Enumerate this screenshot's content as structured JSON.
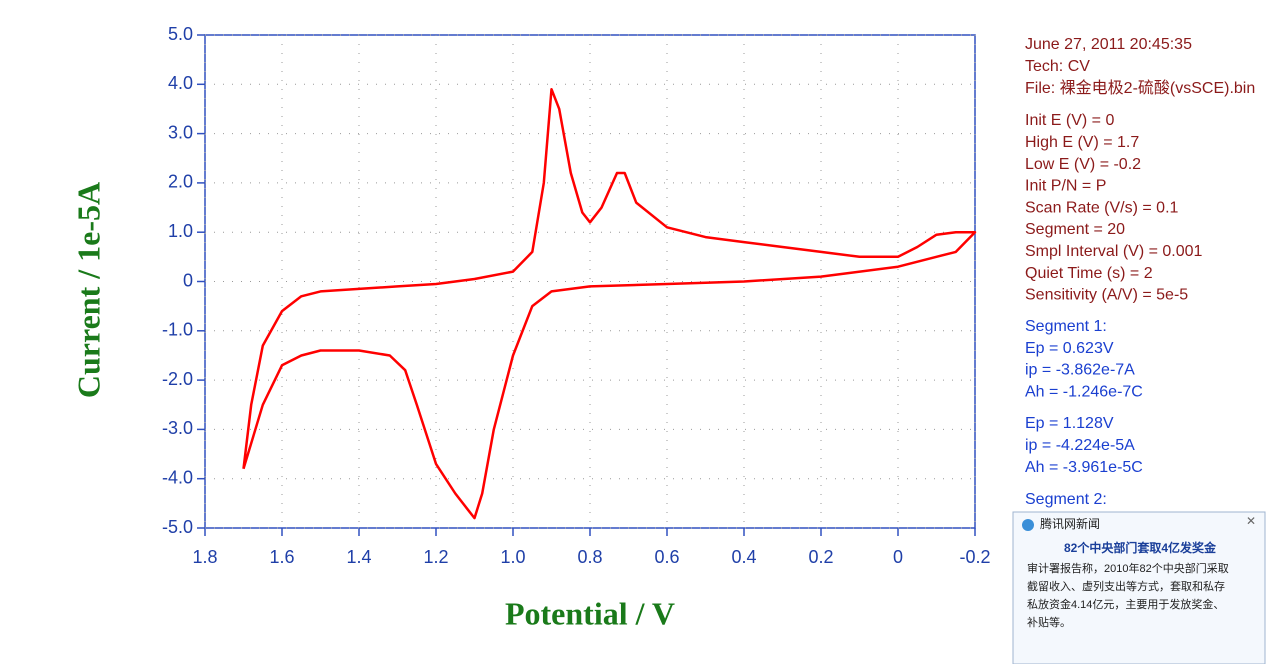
{
  "chart_data": {
    "type": "line",
    "x_label": "Potential / V",
    "y_label": "Current / 1e-5A",
    "color": "#ff0000",
    "x": [
      1.7,
      1.68,
      1.65,
      1.6,
      1.55,
      1.5,
      1.4,
      1.3,
      1.2,
      1.1,
      1.0,
      0.95,
      0.92,
      0.9,
      0.88,
      0.85,
      0.82,
      0.8,
      0.77,
      0.73,
      0.71,
      0.68,
      0.6,
      0.5,
      0.4,
      0.3,
      0.2,
      0.1,
      0,
      -0.05,
      -0.1,
      -0.15,
      -0.2,
      -0.15,
      -0.1,
      0,
      0.2,
      0.4,
      0.6,
      0.8,
      0.9,
      0.95,
      1.0,
      1.05,
      1.08,
      1.1,
      1.12,
      1.15,
      1.2,
      1.25,
      1.28,
      1.32,
      1.4,
      1.5,
      1.55,
      1.6,
      1.65,
      1.7
    ],
    "values": [
      -3.8,
      -2.5,
      -1.3,
      -0.6,
      -0.3,
      -0.2,
      -0.15,
      -0.1,
      -0.05,
      0.05,
      0.2,
      0.6,
      2.0,
      3.9,
      3.5,
      2.2,
      1.4,
      1.2,
      1.5,
      2.2,
      2.2,
      1.6,
      1.1,
      0.9,
      0.8,
      0.7,
      0.6,
      0.5,
      0.5,
      0.7,
      0.95,
      1.0,
      1.0,
      0.6,
      0.5,
      0.3,
      0.1,
      0.0,
      -0.05,
      -0.1,
      -0.2,
      -0.5,
      -1.5,
      -3.0,
      -4.3,
      -4.8,
      -4.6,
      -4.3,
      -3.7,
      -2.5,
      -1.8,
      -1.5,
      -1.4,
      -1.4,
      -1.5,
      -1.7,
      -2.5,
      -3.8
    ],
    "xlim": [
      1.8,
      -0.2
    ],
    "xticks": [
      1.8,
      1.6,
      1.4,
      1.2,
      {
        "value": 1,
        "label": "1.0"
      },
      0.8,
      0.6,
      0.4,
      0.2,
      0,
      -0.2
    ],
    "ylim": [
      -5,
      5
    ],
    "yticks": [
      {
        "value": 5,
        "label": "5.0"
      },
      {
        "value": 4,
        "label": "4.0"
      },
      {
        "value": 3,
        "label": "3.0"
      },
      {
        "value": 2,
        "label": "2.0"
      },
      {
        "value": 1,
        "label": "1.0"
      },
      0,
      {
        "value": -1,
        "label": "-1.0"
      },
      {
        "value": -2,
        "label": "-2.0"
      },
      {
        "value": -3,
        "label": "-3.0"
      },
      {
        "value": -4,
        "label": "-4.0"
      },
      {
        "value": -5,
        "label": "-5.0"
      }
    ],
    "grid": true
  },
  "info": {
    "header": [
      "June 27, 2011   20:45:35",
      "Tech: CV",
      "File: 裸金电极2-硫酸(vsSCE).bin"
    ],
    "params": [
      "Init E (V) = 0",
      "High E (V) = 1.7",
      "Low E (V) = -0.2",
      "Init P/N = P",
      "Scan Rate (V/s) = 0.1",
      "Segment = 20",
      "Smpl Interval (V) = 0.001",
      "Quiet Time (s) = 2",
      "Sensitivity (A/V) = 5e-5"
    ],
    "seg1": [
      "Segment 1:",
      "Ep = 0.623V",
      "ip = -3.862e-7A",
      "Ah = -1.246e-7C"
    ],
    "seg1b": [
      "Ep = 1.128V",
      "ip = -4.224e-5A",
      "Ah = -3.961e-5C"
    ],
    "seg2": [
      "Segment 2:"
    ]
  },
  "popup": {
    "title": "腾讯网新闻",
    "headline": "82个中央部门套取4亿发奖金",
    "body": [
      "审计署报告称，2010年82个中央部门采取",
      "截留收入、虚列支出等方式，套取和私存",
      "私放资金4.14亿元，主要用于发放奖金、",
      "补贴等。"
    ]
  }
}
